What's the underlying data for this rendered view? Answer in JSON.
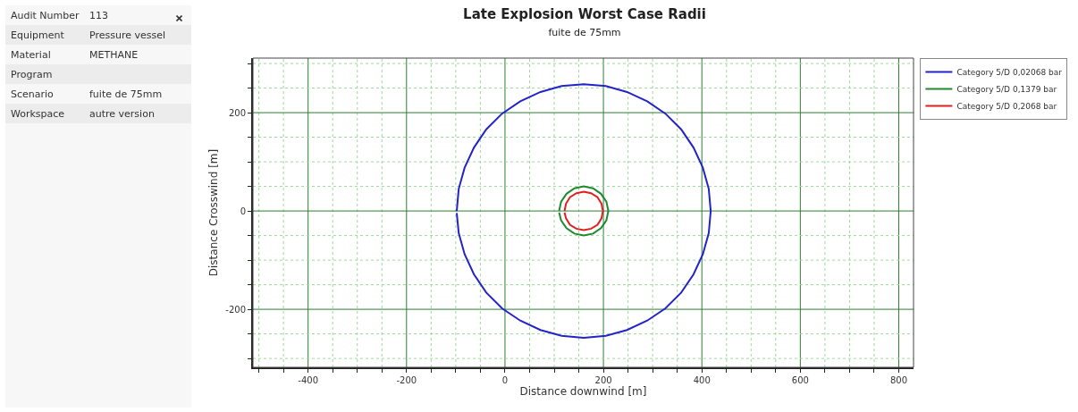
{
  "chart_data": [
    {
      "type": "other",
      "y_categories": [
        "Audit Number",
        "Equipment",
        "Material",
        "Program",
        "Scenario",
        "Workspace"
      ],
      "cell_labels": [
        [
          "113"
        ],
        [
          "Pressure vessel"
        ],
        [
          "METHANE"
        ],
        [
          null
        ],
        [
          "fuite de 75mm"
        ],
        [
          "autre version"
        ]
      ]
    },
    {
      "type": "line",
      "title": "Late Explosion Worst Case Radii",
      "subtitle": "fuite de 75mm",
      "xlabel": "Distance downwind [m]",
      "ylabel": "Distance Crosswind [m]",
      "xlim": [
        -512,
        830
      ],
      "ylim": [
        -318,
        311
      ],
      "xticks": [
        {
          "value": -500,
          "label": null
        },
        {
          "value": -450,
          "label": null
        },
        -400,
        {
          "value": -350,
          "label": null
        },
        {
          "value": -300,
          "label": null
        },
        {
          "value": -250,
          "label": null
        },
        -200,
        {
          "value": -150,
          "label": null
        },
        {
          "value": -100,
          "label": null
        },
        {
          "value": -50,
          "label": null
        },
        0,
        {
          "value": 50,
          "label": null
        },
        {
          "value": 100,
          "label": null
        },
        {
          "value": 150,
          "label": null
        },
        200,
        {
          "value": 250,
          "label": null
        },
        {
          "value": 300,
          "label": null
        },
        {
          "value": 350,
          "label": null
        },
        400,
        {
          "value": 450,
          "label": null
        },
        {
          "value": 500,
          "label": null
        },
        {
          "value": 550,
          "label": null
        },
        600,
        {
          "value": 650,
          "label": null
        },
        {
          "value": 700,
          "label": null
        },
        {
          "value": 750,
          "label": null
        },
        800
      ],
      "yticks": [
        {
          "value": -300,
          "label": null
        },
        {
          "value": -250,
          "label": null
        },
        -200,
        {
          "value": -150,
          "label": null
        },
        {
          "value": -100,
          "label": null
        },
        {
          "value": -50,
          "label": null
        },
        0,
        {
          "value": 50,
          "label": null
        },
        {
          "value": 100,
          "label": null
        },
        {
          "value": 150,
          "label": null
        },
        200,
        {
          "value": 250,
          "label": null
        },
        {
          "value": 300,
          "label": null
        }
      ],
      "grid": true,
      "legend": "top right",
      "marker": "none",
      "line_style": "solid",
      "series": [
        {
          "name": "Category 5/D 0,02068 bar",
          "color": "#2323c8",
          "x": [
            -98,
            -94,
            -82,
            -63,
            -38,
            -6,
            31,
            72,
            115,
            160,
            205,
            248,
            289,
            326,
            358,
            383,
            402,
            414,
            418,
            414,
            402,
            383,
            358,
            326,
            289,
            248,
            205,
            160,
            115,
            72,
            31,
            -6,
            -38,
            -63,
            -82,
            -94,
            -98
          ],
          "values": [
            0,
            45,
            88,
            129,
            166,
            198,
            223,
            242,
            254,
            258,
            254,
            242,
            223,
            198,
            166,
            129,
            88,
            45,
            0,
            -45,
            -88,
            -129,
            -166,
            -198,
            -223,
            -242,
            -254,
            -258,
            -254,
            -242,
            -223,
            -198,
            -166,
            -129,
            -88,
            -45,
            -4
          ]
        },
        {
          "name": "Category 5/D 0,1379 bar",
          "color": "#1f8a2e",
          "x": [
            110,
            114,
            125,
            141,
            160,
            179,
            195,
            206,
            210,
            206,
            195,
            179,
            160,
            141,
            125,
            114,
            110
          ],
          "values": [
            0,
            19,
            35,
            46,
            50,
            46,
            35,
            19,
            0,
            -19,
            -35,
            -46,
            -50,
            -46,
            -35,
            -19,
            -3
          ]
        },
        {
          "name": "Category 5/D 0,2068 bar",
          "color": "#e02020",
          "x": [
            121,
            124,
            132,
            145,
            160,
            175,
            188,
            196,
            199,
            196,
            188,
            175,
            160,
            145,
            132,
            124,
            121
          ],
          "values": [
            0,
            15,
            28,
            36,
            39,
            36,
            28,
            15,
            0,
            -15,
            -28,
            -36,
            -39,
            -36,
            -28,
            -15,
            -3
          ]
        }
      ]
    }
  ]
}
